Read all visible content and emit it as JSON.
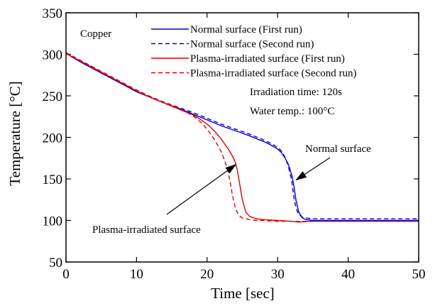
{
  "chart_data": {
    "type": "line",
    "xlabel": "Time [sec]",
    "ylabel": "Temperature [°C]",
    "xlim": [
      0,
      50
    ],
    "ylim": [
      50,
      350
    ],
    "xticks": [
      0,
      10,
      20,
      30,
      40,
      50
    ],
    "yticks": [
      50,
      100,
      150,
      200,
      250,
      300,
      350
    ],
    "grid": false,
    "legend_position": "top-right",
    "material_label": "Copper",
    "conditions": [
      "Irradiation time: 120s",
      "Water temp.: 100°C"
    ],
    "annotations": [
      {
        "text": "Normal surface",
        "points_to": {
          "x": 32.5,
          "y": 148
        }
      },
      {
        "text": "Plasma-irradiated surface",
        "points_to": {
          "x": 24.2,
          "y": 168
        }
      }
    ],
    "series": [
      {
        "name": "Normal surface (First run)",
        "color": "#0000cc",
        "dash": "solid",
        "x": [
          0,
          2,
          4,
          6,
          8,
          10,
          12,
          14,
          16,
          18,
          20,
          22,
          24,
          26,
          28,
          29,
          30,
          30.5,
          31,
          31.5,
          32,
          32.3,
          32.6,
          33,
          33.5,
          34,
          35,
          36,
          40,
          45,
          50
        ],
        "y": [
          301,
          291,
          282,
          273,
          264,
          255,
          248,
          241,
          235,
          228,
          221,
          214,
          208,
          202,
          195,
          191,
          186,
          182,
          176,
          168,
          155,
          142,
          125,
          110,
          103,
          101,
          100,
          100,
          100,
          100,
          100
        ]
      },
      {
        "name": "Normal surface (Second run)",
        "color": "#0000cc",
        "dash": "dashed",
        "x": [
          0,
          2,
          4,
          6,
          8,
          10,
          12,
          14,
          16,
          18,
          20,
          22,
          24,
          26,
          28,
          29,
          30,
          30.5,
          31,
          31.5,
          32,
          32.3,
          32.6,
          33,
          33.5,
          34,
          35,
          36,
          40,
          45,
          50
        ],
        "y": [
          302,
          292,
          283,
          274,
          265,
          256,
          249,
          242,
          236,
          230,
          223,
          216,
          210,
          204,
          197,
          193,
          188,
          184,
          177,
          166,
          148,
          128,
          115,
          107,
          104,
          103,
          102,
          102,
          102,
          102,
          102
        ]
      },
      {
        "name": "Plasma-irradiated surface (First run)",
        "color": "#e00000",
        "dash": "solid",
        "x": [
          0,
          2,
          4,
          6,
          8,
          10,
          12,
          14,
          16,
          18,
          19,
          20,
          21,
          22,
          23,
          23.5,
          24,
          24.3,
          24.6,
          25,
          25.5,
          26,
          27,
          28,
          30,
          32,
          33,
          35,
          40,
          45,
          50
        ],
        "y": [
          301,
          292,
          283,
          274,
          265,
          256,
          248,
          241,
          234,
          227,
          222,
          216,
          208,
          198,
          186,
          179,
          170,
          160,
          145,
          125,
          110,
          105,
          102,
          101,
          100,
          99,
          98,
          99,
          99,
          99,
          99
        ]
      },
      {
        "name": "Plasma-irradiated surface (Second run)",
        "color": "#e00000",
        "dash": "dashed",
        "x": [
          0,
          2,
          4,
          6,
          8,
          10,
          12,
          14,
          16,
          18,
          19,
          20,
          21,
          22,
          22.5,
          23,
          23.3,
          23.6,
          24,
          24.5,
          25,
          26,
          27,
          28,
          30,
          33,
          35,
          40,
          45,
          50
        ],
        "y": [
          302,
          293,
          284,
          275,
          266,
          257,
          249,
          242,
          235,
          226,
          219,
          210,
          198,
          183,
          172,
          158,
          145,
          130,
          115,
          106,
          103,
          101,
          100,
          100,
          99,
          99,
          99,
          99,
          99,
          99
        ]
      }
    ]
  }
}
